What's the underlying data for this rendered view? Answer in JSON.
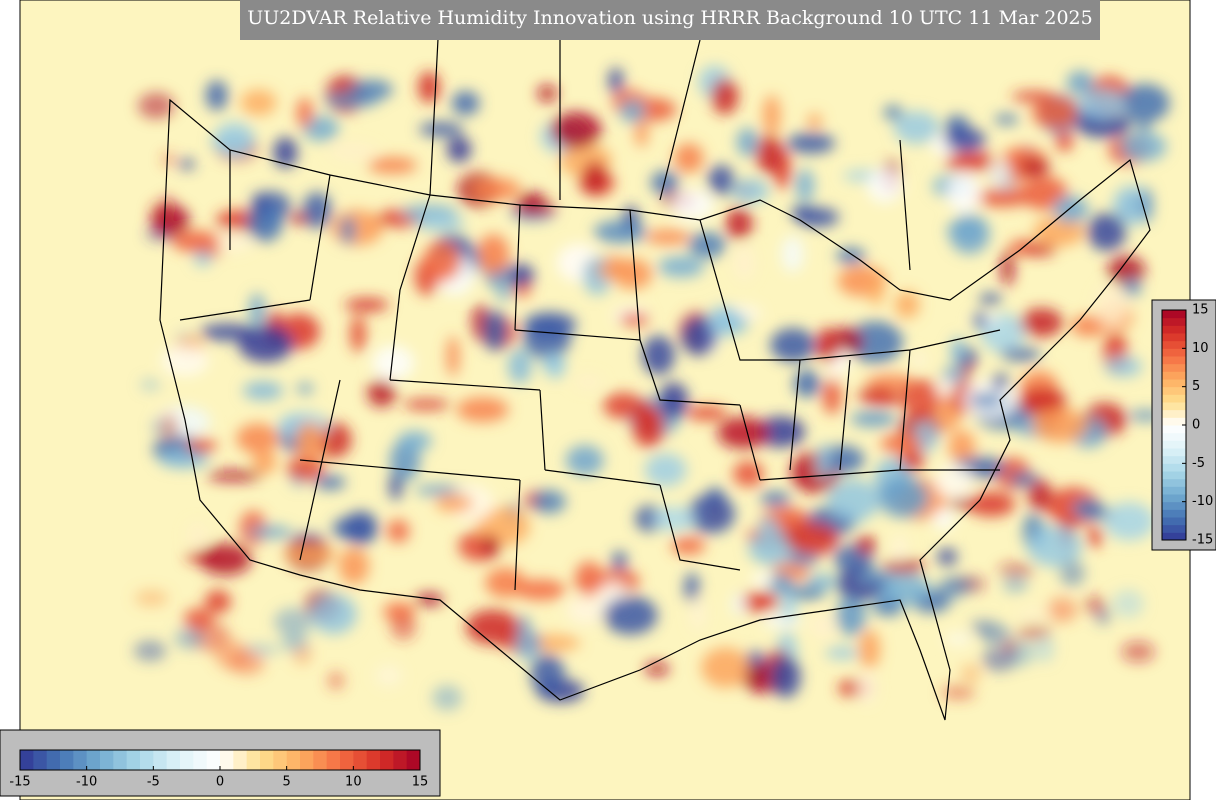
{
  "map": {
    "title": "UU2DVAR Relative Humidity Innovation using HRRR Background 10 UTC 11 Mar 2025",
    "colors": [
      "#313695",
      "#4575b4",
      "#74add1",
      "#abd9e9",
      "#e0f3f8",
      "#ffffff",
      "#fee090",
      "#fdae61",
      "#f46d43",
      "#d73027",
      "#a50026"
    ],
    "colorbars": [
      {
        "orientation": "vertical",
        "range": [
          -15,
          15
        ],
        "ticks": [
          15,
          10,
          5,
          0,
          -5,
          -10,
          -15
        ]
      },
      {
        "orientation": "horizontal",
        "range": [
          -15,
          15
        ],
        "ticks": [
          -15,
          -10,
          -5,
          0,
          5,
          10,
          15
        ]
      }
    ]
  }
}
